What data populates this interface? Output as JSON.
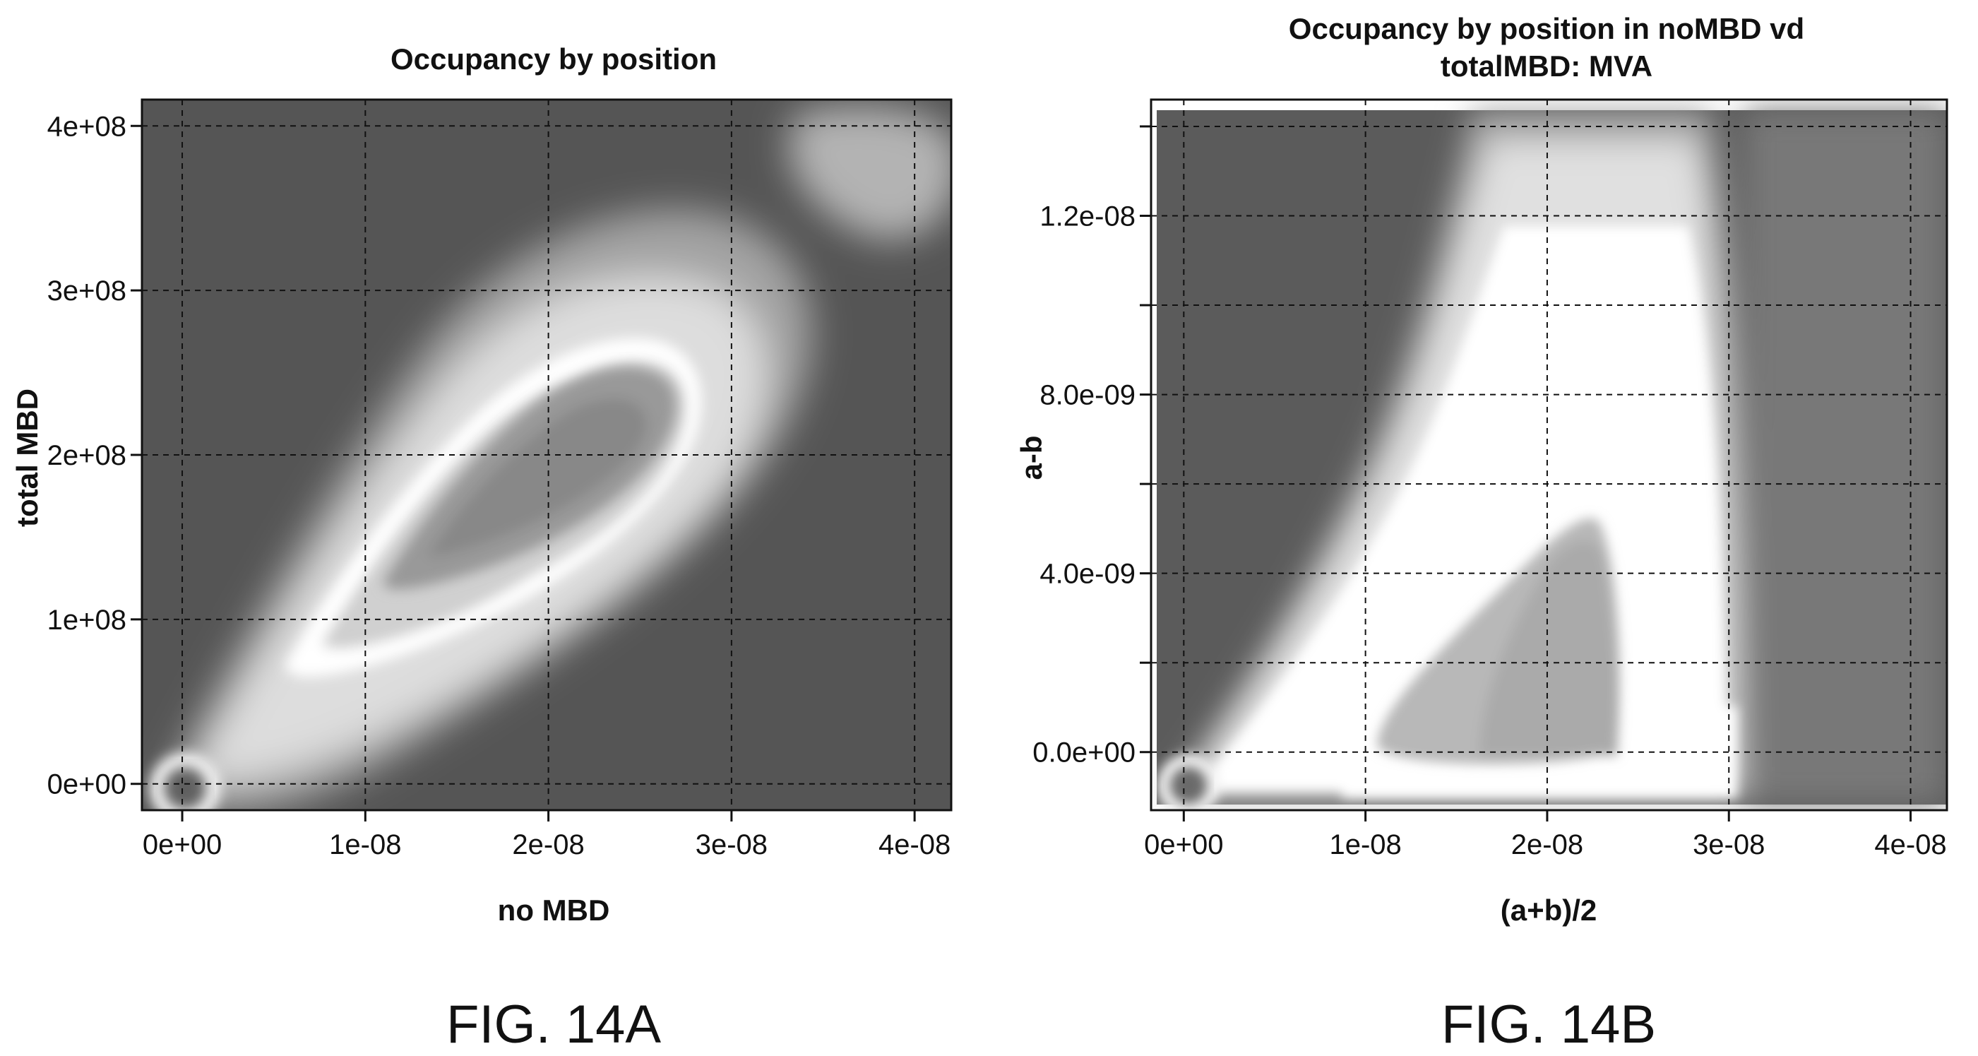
{
  "chart_data": [
    {
      "type": "heatmap",
      "title": "Occupancy by position",
      "xlabel": "no MBD",
      "ylabel": "total MBD",
      "xlim": [
        -2.2e-09,
        4.2e-08
      ],
      "ylim": [
        -16000000.0,
        416000000.0
      ],
      "x_ticks": [
        0,
        1e-08,
        2e-08,
        3e-08,
        4e-08
      ],
      "x_tick_labels": [
        "0e+00",
        "1e-08",
        "2e-08",
        "3e-08",
        "4e-08"
      ],
      "y_ticks": [
        0,
        100000000.0,
        200000000.0,
        300000000.0,
        400000000.0
      ],
      "y_tick_labels": [
        "0e+00",
        "1e+08",
        "2e+08",
        "3e+08",
        "4e+08"
      ],
      "grid": true,
      "colormap": "grayscale",
      "caption": "FIG. 14A"
    },
    {
      "type": "heatmap",
      "title_lines": [
        "Occupancy by position in noMBD vd",
        "totalMBD: MVA"
      ],
      "xlabel": "(a+b)/2",
      "ylabel": "a-b",
      "xlim": [
        -1.8e-09,
        4.2e-08
      ],
      "ylim": [
        -1.3e-09,
        1.46e-08
      ],
      "x_ticks": [
        0,
        1e-08,
        2e-08,
        3e-08,
        4e-08
      ],
      "x_tick_labels": [
        "0e+00",
        "1e-08",
        "2e-08",
        "3e-08",
        "4e-08"
      ],
      "y_ticks": [
        0,
        2e-09,
        4e-09,
        6e-09,
        8e-09,
        1e-08,
        1.2e-08,
        1.4e-08
      ],
      "y_tick_labels": [
        "0.0e+00",
        "",
        "4.0e-09",
        "",
        "8.0e-09",
        "",
        "1.2e-08",
        ""
      ],
      "grid": true,
      "colormap": "grayscale",
      "caption": "FIG. 14B"
    }
  ]
}
